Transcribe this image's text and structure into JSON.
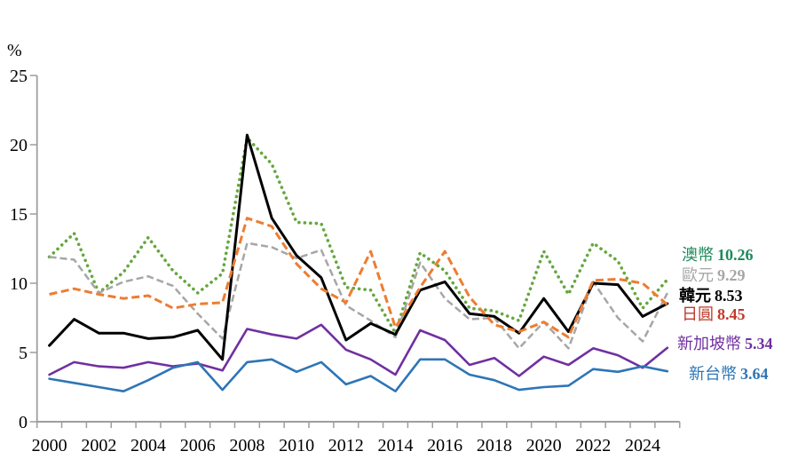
{
  "chart_data": {
    "type": "line",
    "title": "",
    "ylabel": "%",
    "xlabel": "",
    "ylim": [
      0,
      25
    ],
    "ytick_interval": 5,
    "ytick_labels": [
      "0",
      "5",
      "10",
      "15",
      "20",
      "25"
    ],
    "x_start": 2000,
    "x_end": 2025,
    "x": [
      2000,
      2001,
      2002,
      2003,
      2004,
      2005,
      2006,
      2007,
      2008,
      2009,
      2010,
      2011,
      2012,
      2013,
      2014,
      2015,
      2016,
      2017,
      2018,
      2019,
      2020,
      2021,
      2022,
      2023,
      2024,
      2025
    ],
    "xtick_labels": [
      "2000",
      "2002",
      "2004",
      "2006",
      "2008",
      "2010",
      "2012",
      "2014",
      "2016",
      "2018",
      "2020",
      "2022",
      "2024"
    ],
    "grid": false,
    "legend_position": "right",
    "axis_color": "#9e9e9e",
    "series": [
      {
        "key": "aud",
        "name": "澳幣",
        "final_value": 10.26,
        "color": "#64a73e",
        "label_color": "#1e8a5a",
        "style": "dotted",
        "values": [
          11.9,
          13.6,
          9.3,
          10.8,
          13.3,
          10.9,
          9.3,
          10.7,
          20.5,
          18.6,
          14.4,
          14.3,
          9.7,
          9.5,
          6.4,
          12.2,
          10.9,
          8.2,
          8.0,
          7.3,
          12.3,
          9.2,
          12.9,
          11.6,
          8.2,
          10.26
        ]
      },
      {
        "key": "eur",
        "name": "歐元",
        "final_value": 9.29,
        "color": "#a6a6a6",
        "label_color": "#a6a6a6",
        "style": "dashed",
        "values": [
          11.9,
          11.7,
          9.3,
          10.1,
          10.5,
          9.8,
          7.8,
          6.0,
          12.9,
          12.6,
          11.8,
          12.4,
          8.4,
          7.3,
          6.1,
          11.5,
          8.9,
          7.4,
          7.5,
          5.3,
          7.2,
          5.3,
          10.1,
          7.5,
          5.8,
          9.29
        ]
      },
      {
        "key": "krw",
        "name": "韓元",
        "final_value": 8.53,
        "color": "#000000",
        "label_color": "#000000",
        "style": "solid-bold",
        "values": [
          5.5,
          7.4,
          6.4,
          6.4,
          6.0,
          6.1,
          6.6,
          4.5,
          20.7,
          14.7,
          12.0,
          10.4,
          5.9,
          7.1,
          6.3,
          9.5,
          10.1,
          7.8,
          7.6,
          6.4,
          8.9,
          6.5,
          10.0,
          9.9,
          7.6,
          8.53
        ]
      },
      {
        "key": "jpy",
        "name": "日圓",
        "final_value": 8.45,
        "color": "#ed7d31",
        "label_color": "#c0392b",
        "style": "long-dash",
        "values": [
          9.2,
          9.6,
          9.2,
          8.9,
          9.1,
          8.2,
          8.5,
          8.6,
          14.7,
          14.1,
          11.4,
          9.6,
          8.6,
          12.3,
          6.8,
          9.7,
          12.3,
          9.0,
          7.0,
          6.5,
          7.2,
          6.1,
          10.2,
          10.3,
          10.0,
          8.45
        ]
      },
      {
        "key": "sgd",
        "name": "新加坡幣",
        "final_value": 5.34,
        "color": "#7030a0",
        "label_color": "#7030a0",
        "style": "solid",
        "values": [
          3.4,
          4.3,
          4.0,
          3.9,
          4.3,
          4.0,
          4.2,
          3.7,
          6.7,
          6.3,
          6.0,
          7.0,
          5.2,
          4.5,
          3.4,
          6.6,
          5.9,
          4.1,
          4.6,
          3.3,
          4.7,
          4.1,
          5.3,
          4.8,
          3.9,
          5.34
        ]
      },
      {
        "key": "twd",
        "name": "新台幣",
        "final_value": 3.64,
        "color": "#2e75b6",
        "label_color": "#2e75b6",
        "style": "solid",
        "values": [
          3.1,
          2.8,
          2.5,
          2.2,
          3.0,
          3.9,
          4.3,
          2.3,
          4.3,
          4.5,
          3.6,
          4.3,
          2.7,
          3.3,
          2.2,
          4.5,
          4.5,
          3.4,
          3.0,
          2.3,
          2.5,
          2.6,
          3.8,
          3.6,
          4.0,
          3.64
        ]
      }
    ]
  }
}
